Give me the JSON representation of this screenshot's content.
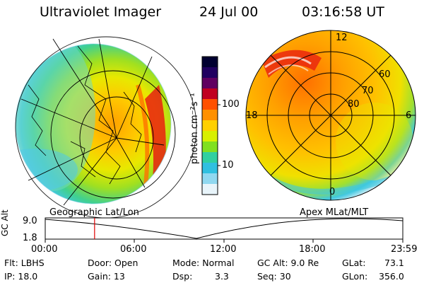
{
  "header": {
    "title": "Ultraviolet Imager",
    "date": "24 Jul 00",
    "time": "03:16:58 UT"
  },
  "colorbar": {
    "unit_label": "photon cm⁻²s⁻¹",
    "tick_labels": [
      "100",
      "10"
    ],
    "colors": [
      "#000030",
      "#200060",
      "#600060",
      "#c00020",
      "#ff5000",
      "#ff9000",
      "#ffd000",
      "#d8f000",
      "#80e020",
      "#30d0a0",
      "#30c0e0",
      "#90d8f0",
      "#e8f4fa"
    ]
  },
  "left_map": {
    "label": "Geographic Lat/Lon"
  },
  "right_map": {
    "label": "Apex MLat/MLT",
    "mlt_labels": {
      "top": "12",
      "bottom": "0",
      "left": "18",
      "right": "6"
    },
    "lat_labels": [
      "60",
      "70",
      "80"
    ]
  },
  "timeline": {
    "y_axis_label": "GC Alt",
    "y_ticks": [
      "9.0",
      "1.8"
    ],
    "x_ticks": [
      "00:00",
      "06:00",
      "12:00",
      "18:00",
      "23:59"
    ],
    "marker_time_fraction": 0.138,
    "marker_color": "#e00000"
  },
  "info": {
    "flt": "Flt: LBHS",
    "ip": "IP: 18.0",
    "door": "Door: Open",
    "gain": "Gain: 13",
    "mode": "Mode: Normal",
    "dsp_label": "Dsp:",
    "dsp_value": "3.3",
    "gcalt": "GC Alt: 9.0 Re",
    "seq": "Seq: 30",
    "glat_label": "GLat:",
    "glat_value": "73.1",
    "glon_label": "GLon:",
    "glon_value": "356.0"
  }
}
